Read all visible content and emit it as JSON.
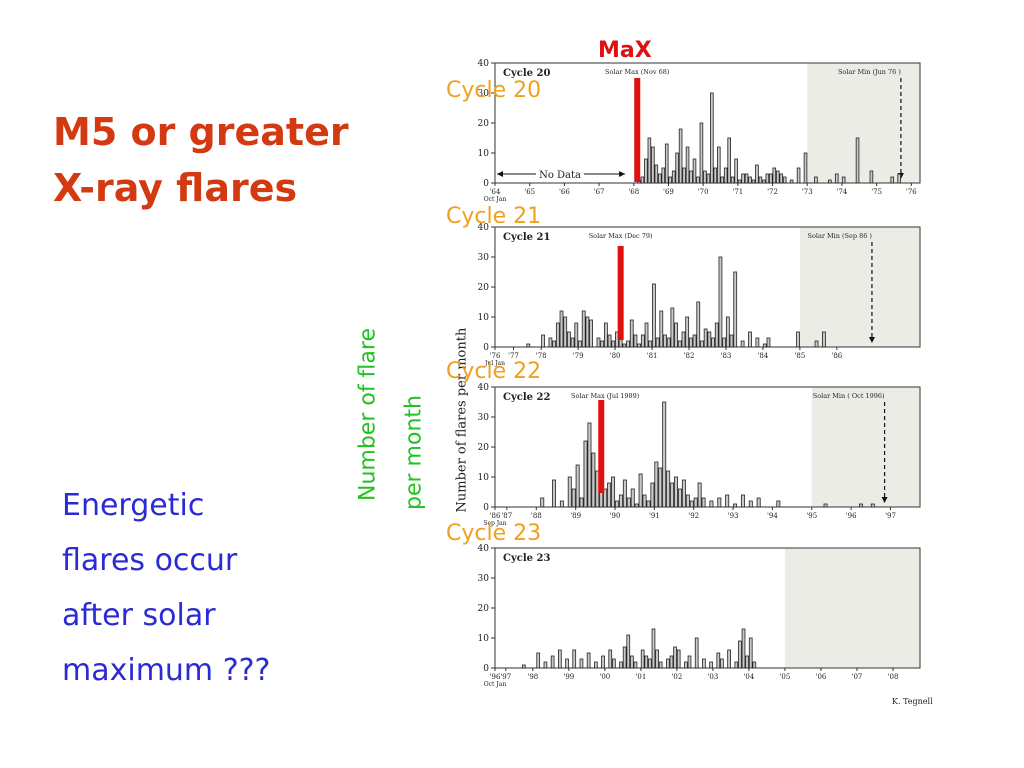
{
  "slide": {
    "title_line1": "M5 or greater",
    "title_line2": "X-ray flares",
    "note_lines": [
      "Energetic",
      "flares occur",
      "after solar",
      "maximum ???"
    ],
    "vlabel_line1": "Number of flare",
    "vlabel_line2": "per month",
    "max_label": "MaX",
    "cycle_labels": [
      "Cycle 20",
      "Cycle 21",
      "Cycle 22",
      "Cycle 23"
    ],
    "colors": {
      "title": "#d43a12",
      "note": "#2a2ad6",
      "vlabel": "#21c221",
      "cycle_label": "#f0a020",
      "max_marker": "#e01010",
      "panel_shade": "#ececE6"
    }
  },
  "figure": {
    "ylabel": "Number of flares per month",
    "credit": "K. Tegnell",
    "no_data_label": "No Data"
  },
  "chart_data": [
    {
      "type": "bar",
      "panel_title": "Cycle 20",
      "ylim": [
        0,
        40
      ],
      "yticks": [
        0,
        10,
        20,
        30,
        40
      ],
      "xlim": [
        1964.75,
        1977.0
      ],
      "xticks": [
        {
          "v": 1964.75,
          "l": "'64"
        },
        {
          "v": 1965.75,
          "l": "'65"
        },
        {
          "v": 1966.75,
          "l": "'66"
        },
        {
          "v": 1967.75,
          "l": "'67"
        },
        {
          "v": 1968.75,
          "l": "'68"
        },
        {
          "v": 1969.75,
          "l": "'69"
        },
        {
          "v": 1970.75,
          "l": "'70"
        },
        {
          "v": 1971.75,
          "l": "'71"
        },
        {
          "v": 1972.75,
          "l": "'72"
        },
        {
          "v": 1973.75,
          "l": "'73"
        },
        {
          "v": 1974.75,
          "l": "'74"
        },
        {
          "v": 1975.75,
          "l": "'75"
        },
        {
          "v": 1976.75,
          "l": "'76"
        }
      ],
      "sublabel": "Oct Jan",
      "shade_from": 1973.75,
      "max_annotation": {
        "text": "Solar Max (Nov 68)",
        "x": 1968.85
      },
      "min_annotation": {
        "text": "Solar Min (Jun 76 )",
        "x": 1976.45
      },
      "no_data_until": 1968.5,
      "x": [
        1968.9,
        1969.0,
        1969.1,
        1969.2,
        1969.3,
        1969.4,
        1969.5,
        1969.6,
        1969.7,
        1969.8,
        1969.9,
        1970.0,
        1970.1,
        1970.2,
        1970.3,
        1970.4,
        1970.5,
        1970.6,
        1970.7,
        1970.8,
        1970.9,
        1971.0,
        1971.1,
        1971.2,
        1971.3,
        1971.4,
        1971.5,
        1971.6,
        1971.7,
        1971.8,
        1971.9,
        1972.0,
        1972.1,
        1972.2,
        1972.3,
        1972.4,
        1972.5,
        1972.6,
        1972.7,
        1972.8,
        1972.9,
        1973.0,
        1973.1,
        1973.3,
        1973.5,
        1973.7,
        1974.0,
        1974.4,
        1974.6,
        1974.8,
        1975.2,
        1975.6,
        1976.2,
        1976.4
      ],
      "values": [
        1,
        2,
        8,
        15,
        12,
        6,
        3,
        5,
        13,
        2,
        4,
        10,
        18,
        5,
        12,
        4,
        8,
        2,
        20,
        4,
        3,
        30,
        5,
        12,
        2,
        5,
        15,
        2,
        8,
        1,
        3,
        3,
        2,
        1,
        6,
        2,
        1,
        3,
        3,
        5,
        4,
        3,
        2,
        1,
        5,
        10,
        2,
        1,
        3,
        2,
        15,
        4,
        2,
        3
      ]
    },
    {
      "type": "bar",
      "panel_title": "Cycle 21",
      "ylim": [
        0,
        40
      ],
      "yticks": [
        0,
        10,
        20,
        30,
        40
      ],
      "xlim": [
        1976.5,
        1988.0
      ],
      "xticks": [
        {
          "v": 1976.5,
          "l": "'76"
        },
        {
          "v": 1977.0,
          "l": "'77"
        },
        {
          "v": 1977.75,
          "l": "'78"
        },
        {
          "v": 1978.75,
          "l": "'79"
        },
        {
          "v": 1979.75,
          "l": "'80"
        },
        {
          "v": 1980.75,
          "l": "'81"
        },
        {
          "v": 1981.75,
          "l": "'82"
        },
        {
          "v": 1982.75,
          "l": "'83"
        },
        {
          "v": 1983.75,
          "l": "'84"
        },
        {
          "v": 1984.75,
          "l": "'85"
        },
        {
          "v": 1985.75,
          "l": "'86"
        }
      ],
      "sublabel": "Jul Jan",
      "shade_from": 1984.75,
      "max_annotation": {
        "text": "Solar Max (Dec 79)",
        "x": 1979.9
      },
      "min_annotation": {
        "text": "Solar Min (Sep 86 )",
        "x": 1986.7
      },
      "x": [
        1977.4,
        1977.8,
        1978.0,
        1978.1,
        1978.2,
        1978.3,
        1978.4,
        1978.5,
        1978.6,
        1978.7,
        1978.8,
        1978.9,
        1979.0,
        1979.1,
        1979.3,
        1979.4,
        1979.5,
        1979.6,
        1979.7,
        1979.8,
        1979.9,
        1980.0,
        1980.1,
        1980.2,
        1980.3,
        1980.4,
        1980.5,
        1980.6,
        1980.7,
        1980.8,
        1980.9,
        1981.0,
        1981.1,
        1981.2,
        1981.3,
        1981.4,
        1981.5,
        1981.6,
        1981.7,
        1981.8,
        1981.9,
        1982.0,
        1982.1,
        1982.2,
        1982.3,
        1982.4,
        1982.5,
        1982.6,
        1982.7,
        1982.8,
        1982.9,
        1983.0,
        1983.2,
        1983.4,
        1983.6,
        1983.8,
        1983.9,
        1984.7,
        1985.2,
        1985.4
      ],
      "values": [
        1,
        4,
        3,
        2,
        8,
        12,
        10,
        5,
        3,
        8,
        2,
        12,
        10,
        9,
        3,
        2,
        8,
        4,
        2,
        5,
        3,
        1,
        2,
        9,
        4,
        1,
        4,
        8,
        2,
        21,
        3,
        12,
        4,
        3,
        13,
        8,
        2,
        5,
        10,
        3,
        4,
        15,
        2,
        6,
        5,
        3,
        8,
        30,
        3,
        10,
        4,
        25,
        2,
        5,
        3,
        1,
        3,
        5,
        2,
        5
      ]
    },
    {
      "type": "bar",
      "panel_title": "Cycle 22",
      "ylim": [
        0,
        40
      ],
      "yticks": [
        0,
        10,
        20,
        30,
        40
      ],
      "xlim": [
        1986.7,
        1997.5
      ],
      "xticks": [
        {
          "v": 1986.7,
          "l": "'86"
        },
        {
          "v": 1987.0,
          "l": "'87"
        },
        {
          "v": 1987.75,
          "l": "'88"
        },
        {
          "v": 1988.75,
          "l": "'89"
        },
        {
          "v": 1989.75,
          "l": "'90"
        },
        {
          "v": 1990.75,
          "l": "'91"
        },
        {
          "v": 1991.75,
          "l": "'92"
        },
        {
          "v": 1992.75,
          "l": "'93"
        },
        {
          "v": 1993.75,
          "l": "'94"
        },
        {
          "v": 1994.75,
          "l": "'95"
        },
        {
          "v": 1995.75,
          "l": "'96"
        },
        {
          "v": 1996.75,
          "l": "'97"
        }
      ],
      "sublabel": "Sep Jan",
      "shade_from": 1994.75,
      "max_annotation": {
        "text": "Solar Max (Jul 1989)",
        "x": 1989.5
      },
      "min_annotation": {
        "text": "Solar Min ( Oct 1996)",
        "x": 1996.6
      },
      "x": [
        1987.9,
        1988.2,
        1988.4,
        1988.6,
        1988.7,
        1988.8,
        1988.9,
        1989.0,
        1989.1,
        1989.2,
        1989.3,
        1989.4,
        1989.5,
        1989.6,
        1989.7,
        1989.8,
        1989.9,
        1990.0,
        1990.1,
        1990.2,
        1990.3,
        1990.4,
        1990.5,
        1990.6,
        1990.7,
        1990.8,
        1990.9,
        1991.0,
        1991.1,
        1991.2,
        1991.3,
        1991.4,
        1991.5,
        1991.6,
        1991.7,
        1991.8,
        1991.9,
        1992.0,
        1992.2,
        1992.4,
        1992.6,
        1992.8,
        1993.0,
        1993.2,
        1993.4,
        1993.9,
        1995.1,
        1996.0,
        1996.3
      ],
      "values": [
        3,
        9,
        2,
        10,
        6,
        14,
        3,
        22,
        28,
        18,
        12,
        15,
        6,
        8,
        10,
        2,
        4,
        9,
        3,
        6,
        1,
        11,
        4,
        2,
        8,
        15,
        13,
        35,
        12,
        8,
        10,
        6,
        9,
        4,
        2,
        3,
        8,
        3,
        2,
        3,
        4,
        1,
        4,
        2,
        3,
        2,
        1,
        1,
        1
      ]
    },
    {
      "type": "bar",
      "panel_title": "Cycle 23",
      "ylim": [
        0,
        40
      ],
      "yticks": [
        0,
        10,
        20,
        30,
        40
      ],
      "xlim": [
        1996.7,
        2008.5
      ],
      "xticks": [
        {
          "v": 1996.7,
          "l": "'96"
        },
        {
          "v": 1997.0,
          "l": "'97"
        },
        {
          "v": 1997.75,
          "l": "'98"
        },
        {
          "v": 1998.75,
          "l": "'99"
        },
        {
          "v": 1999.75,
          "l": "'00"
        },
        {
          "v": 2000.75,
          "l": "'01"
        },
        {
          "v": 2001.75,
          "l": "'02"
        },
        {
          "v": 2002.75,
          "l": "'03"
        },
        {
          "v": 2003.75,
          "l": "'04"
        },
        {
          "v": 2004.75,
          "l": "'05"
        },
        {
          "v": 2005.75,
          "l": "'06"
        },
        {
          "v": 2006.75,
          "l": "'07"
        },
        {
          "v": 2007.75,
          "l": "'08"
        }
      ],
      "sublabel": "Oct Jan",
      "shade_from": 2004.75,
      "x": [
        1997.5,
        1997.9,
        1998.1,
        1998.3,
        1998.5,
        1998.7,
        1998.9,
        1999.1,
        1999.3,
        1999.5,
        1999.7,
        1999.9,
        2000.0,
        2000.2,
        2000.3,
        2000.4,
        2000.5,
        2000.6,
        2000.8,
        2000.9,
        2001.0,
        2001.1,
        2001.2,
        2001.3,
        2001.5,
        2001.6,
        2001.7,
        2001.8,
        2002.0,
        2002.1,
        2002.3,
        2002.5,
        2002.7,
        2002.9,
        2003.0,
        2003.2,
        2003.4,
        2003.5,
        2003.6,
        2003.7,
        2003.8,
        2003.9
      ],
      "values": [
        1,
        5,
        2,
        4,
        6,
        3,
        6,
        3,
        5,
        2,
        4,
        6,
        3,
        2,
        7,
        11,
        4,
        2,
        6,
        4,
        3,
        13,
        6,
        2,
        3,
        4,
        7,
        6,
        2,
        4,
        10,
        3,
        2,
        5,
        3,
        6,
        2,
        9,
        13,
        4,
        10,
        2
      ]
    }
  ]
}
